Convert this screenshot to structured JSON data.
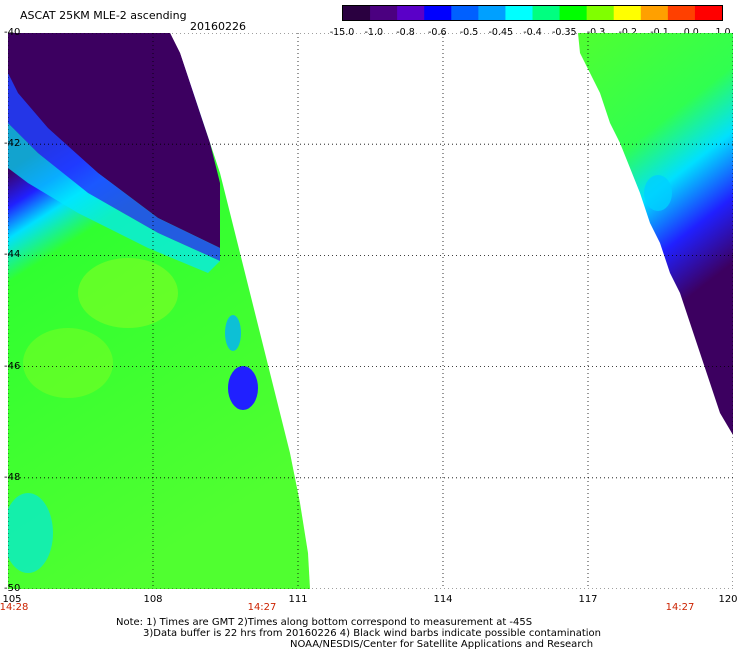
{
  "header": {
    "title": "ASCAT 25KM MLE-2 ascending",
    "date": "20160226"
  },
  "colorbar": {
    "labels": [
      "-15.0",
      "-1.0",
      "-0.8",
      "-0.6",
      "-0.5",
      "-0.45",
      "-0.4",
      "-0.35",
      "-0.3",
      "-0.2",
      "-0.1",
      "0.0",
      "1.0"
    ],
    "colors": [
      "#2a0040",
      "#4b0080",
      "#5a00c8",
      "#0000ff",
      "#0060ff",
      "#00a0ff",
      "#00ffff",
      "#00ff80",
      "#00ff00",
      "#80ff00",
      "#ffff00",
      "#ffa000",
      "#ff4000",
      "#ff0000"
    ]
  },
  "map": {
    "x_ticks": [
      "105",
      "108",
      "111",
      "114",
      "117",
      "120"
    ],
    "y_ticks": [
      "-40",
      "-42",
      "-44",
      "-46",
      "-48",
      "-50"
    ],
    "time_labels": [
      "14:28",
      "14:27",
      "14:27"
    ],
    "colors": {
      "dark_purple": "#3c0060",
      "blue": "#2020ff",
      "cyan": "#00e0ff",
      "green": "#30ff30",
      "light_green": "#80ff20",
      "time_red": "#cc2200"
    }
  },
  "footer": {
    "line1": "Note: 1) Times are GMT 2)Times along bottom correspond to measurement at -45S",
    "line2": "3)Data buffer is 22 hrs from 20160226 4) Black wind barbs indicate possible contamination",
    "line3": "NOAA/NESDIS/Center for Satellite Applications and Research"
  }
}
